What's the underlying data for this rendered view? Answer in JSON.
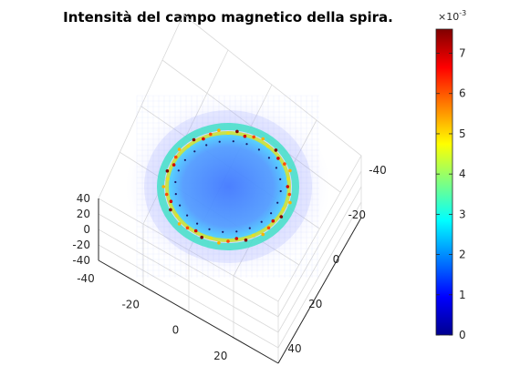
{
  "chart_data": {
    "type": "scatter",
    "title": "Intensità del campo magnetico della spira.",
    "view": "3d",
    "axes": {
      "x": {
        "ticks": [
          "-40",
          "-20",
          "0",
          "20",
          "40"
        ],
        "lim": [
          -40,
          40
        ]
      },
      "y": {
        "ticks": [
          "-40",
          "-20",
          "0",
          "20",
          "40"
        ],
        "lim": [
          -40,
          40
        ]
      },
      "z": {
        "ticks": [
          "40",
          "20",
          "0",
          "-20",
          "-40"
        ],
        "lim": [
          -40,
          40
        ]
      }
    },
    "grid": true,
    "colorbar": {
      "colormap": "jet",
      "lim": [
        0,
        0.0076
      ],
      "ticks": [
        "0",
        "1",
        "2",
        "3",
        "4",
        "5",
        "6",
        "7"
      ],
      "exponent_base": "×10",
      "exponent_power": "-3"
    },
    "field": {
      "coil_radius": 20,
      "peak_value": 0.0076,
      "center_value": 0.0018,
      "outer_value": 0.0005
    }
  },
  "colors": {
    "background": "#ffffff",
    "grid": "#d9d9d9",
    "axis": "#262626",
    "low": "#00008f",
    "high": "#800000"
  }
}
